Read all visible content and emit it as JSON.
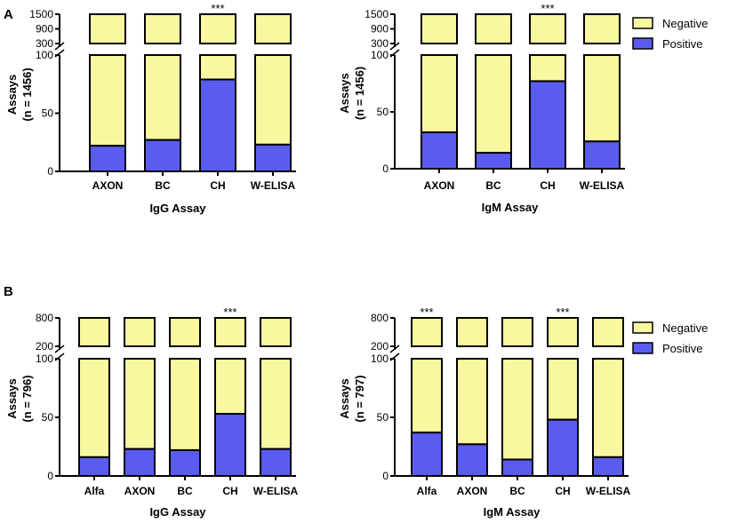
{
  "figure": {
    "panel_labels": [
      "A",
      "B"
    ],
    "legend": {
      "negative": "Negative",
      "positive": "Positive"
    },
    "colors": {
      "negative": "#f9f7a0",
      "positive": "#5a5cf0",
      "axis": "#000000"
    }
  },
  "chart_data": [
    {
      "type": "bar",
      "stacked": true,
      "panel": "A",
      "title": "",
      "xlabel": "IgG Assay",
      "ylabel": "Assays\n(n = 1456)",
      "categories": [
        "AXON",
        "BC",
        "CH",
        "W-ELISA"
      ],
      "series": [
        {
          "name": "Positive",
          "values": [
            22,
            27,
            79,
            23
          ]
        },
        {
          "name": "Negative",
          "values": [
            78,
            73,
            21,
            77
          ]
        }
      ],
      "total": 1456,
      "annotations": [
        "",
        "",
        "***",
        ""
      ],
      "y_lower": {
        "ylim": [
          0,
          100
        ],
        "ticks": [
          0,
          50,
          100
        ]
      },
      "y_upper": {
        "ticks": [
          300,
          900,
          1500
        ]
      },
      "legend_position": "right"
    },
    {
      "type": "bar",
      "stacked": true,
      "panel": "A",
      "title": "",
      "xlabel": "IgM Assay",
      "ylabel": "Assays\n(n = 1456)",
      "categories": [
        "AXON",
        "BC",
        "CH",
        "W-ELISA"
      ],
      "series": [
        {
          "name": "Positive",
          "values": [
            32,
            14,
            77,
            24
          ]
        },
        {
          "name": "Negative",
          "values": [
            68,
            86,
            23,
            76
          ]
        }
      ],
      "total": 1456,
      "annotations": [
        "",
        "",
        "***",
        ""
      ],
      "y_lower": {
        "ylim": [
          0,
          100
        ],
        "ticks": [
          0,
          50,
          100
        ]
      },
      "y_upper": {
        "ticks": [
          300,
          900,
          1500
        ]
      },
      "legend_position": "top-right"
    },
    {
      "type": "bar",
      "stacked": true,
      "panel": "B",
      "title": "",
      "xlabel": "IgG Assay",
      "ylabel": "Assays\n(n = 796)",
      "categories": [
        "Alfa",
        "AXON",
        "BC",
        "CH",
        "W-ELISA"
      ],
      "series": [
        {
          "name": "Positive",
          "values": [
            16,
            23,
            22,
            53,
            23
          ]
        },
        {
          "name": "Negative",
          "values": [
            84,
            77,
            78,
            47,
            77
          ]
        }
      ],
      "total": 796,
      "annotations": [
        "",
        "",
        "",
        "***",
        ""
      ],
      "y_lower": {
        "ylim": [
          0,
          100
        ],
        "ticks": [
          0,
          50,
          100
        ]
      },
      "y_upper": {
        "ticks": [
          200,
          800
        ]
      },
      "legend_position": "right"
    },
    {
      "type": "bar",
      "stacked": true,
      "panel": "B",
      "title": "",
      "xlabel": "IgM Assay",
      "ylabel": "Assays\n(n = 797)",
      "categories": [
        "Alfa",
        "AXON",
        "BC",
        "CH",
        "W-ELISA"
      ],
      "series": [
        {
          "name": "Positive",
          "values": [
            37,
            27,
            14,
            48,
            16
          ]
        },
        {
          "name": "Negative",
          "values": [
            63,
            73,
            86,
            52,
            84
          ]
        }
      ],
      "total": 797,
      "annotations": [
        "***",
        "",
        "",
        "***",
        ""
      ],
      "y_lower": {
        "ylim": [
          0,
          100
        ],
        "ticks": [
          0,
          50,
          100
        ]
      },
      "y_upper": {
        "ticks": [
          200,
          800
        ]
      },
      "legend_position": "top-right"
    }
  ]
}
